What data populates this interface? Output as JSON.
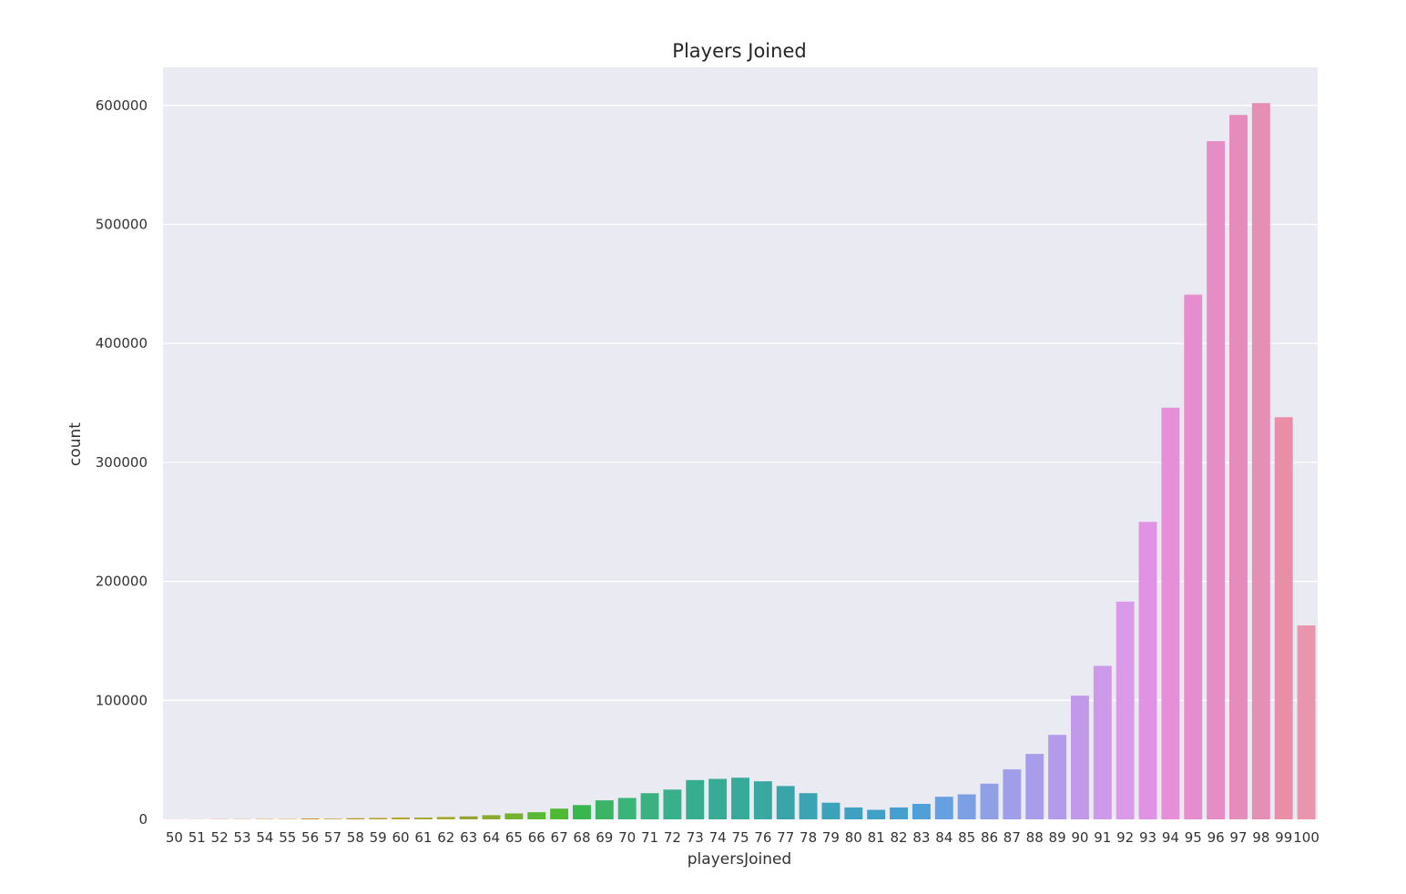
{
  "chart_data": {
    "type": "bar",
    "title": "Players Joined",
    "xlabel": "playersJoined",
    "ylabel": "count",
    "ylim": [
      0,
      600000
    ],
    "ylim_display": [
      0,
      632000
    ],
    "yticks": [
      0,
      100000,
      200000,
      300000,
      400000,
      500000,
      600000
    ],
    "ytick_labels": [
      "0",
      "100000",
      "200000",
      "300000",
      "400000",
      "500000",
      "600000"
    ],
    "grid": true,
    "legend": "none",
    "background": "#eaeaf2",
    "categories": [
      "50",
      "51",
      "52",
      "53",
      "54",
      "55",
      "56",
      "57",
      "58",
      "59",
      "60",
      "61",
      "62",
      "63",
      "64",
      "65",
      "66",
      "67",
      "68",
      "69",
      "70",
      "71",
      "72",
      "73",
      "74",
      "75",
      "76",
      "77",
      "78",
      "79",
      "80",
      "81",
      "82",
      "83",
      "84",
      "85",
      "86",
      "87",
      "88",
      "89",
      "90",
      "91",
      "92",
      "93",
      "94",
      "95",
      "96",
      "97",
      "98",
      "99",
      "100"
    ],
    "values": [
      100,
      100,
      200,
      200,
      300,
      300,
      800,
      500,
      1000,
      1200,
      1500,
      1500,
      2000,
      2500,
      3500,
      5000,
      6000,
      9000,
      12000,
      16000,
      18000,
      22000,
      25000,
      33000,
      34000,
      35000,
      32000,
      28000,
      22000,
      14000,
      10000,
      8000,
      10000,
      13000,
      19000,
      21000,
      30000,
      42000,
      55000,
      71000,
      104000,
      129000,
      183000,
      250000,
      346000,
      441000,
      570000,
      592000,
      602000,
      338000,
      163000
    ],
    "colors": [
      "#f77189",
      "#f7754f",
      "#f7754f",
      "#e58b32",
      "#e58b32",
      "#d39532",
      "#d39532",
      "#c39532",
      "#c29e32",
      "#b5a231",
      "#b5a231",
      "#a5a831",
      "#a5a831",
      "#97a431",
      "#89ab31",
      "#77b131",
      "#58b932",
      "#4fb936",
      "#38b74f",
      "#3bb466",
      "#3ab579",
      "#3bb081",
      "#38b08a",
      "#36ad8e",
      "#37ab94",
      "#37aa99",
      "#38a8a1",
      "#3aa5a8",
      "#3ba3b1",
      "#3ca2b9",
      "#3fa0c2",
      "#41a0c8",
      "#45a0d0",
      "#4ea0d8",
      "#67a0e0",
      "#7d9fe3",
      "#90a0e6",
      "#a09de9",
      "#a99deb",
      "#b39aeb",
      "#c09ae9",
      "#cc9ae8",
      "#d99be7",
      "#e292e4",
      "#e78ed8",
      "#e68ecd",
      "#e58dc4",
      "#e58cbd",
      "#e68fb5",
      "#e88fa7",
      "#e895ad"
    ]
  }
}
